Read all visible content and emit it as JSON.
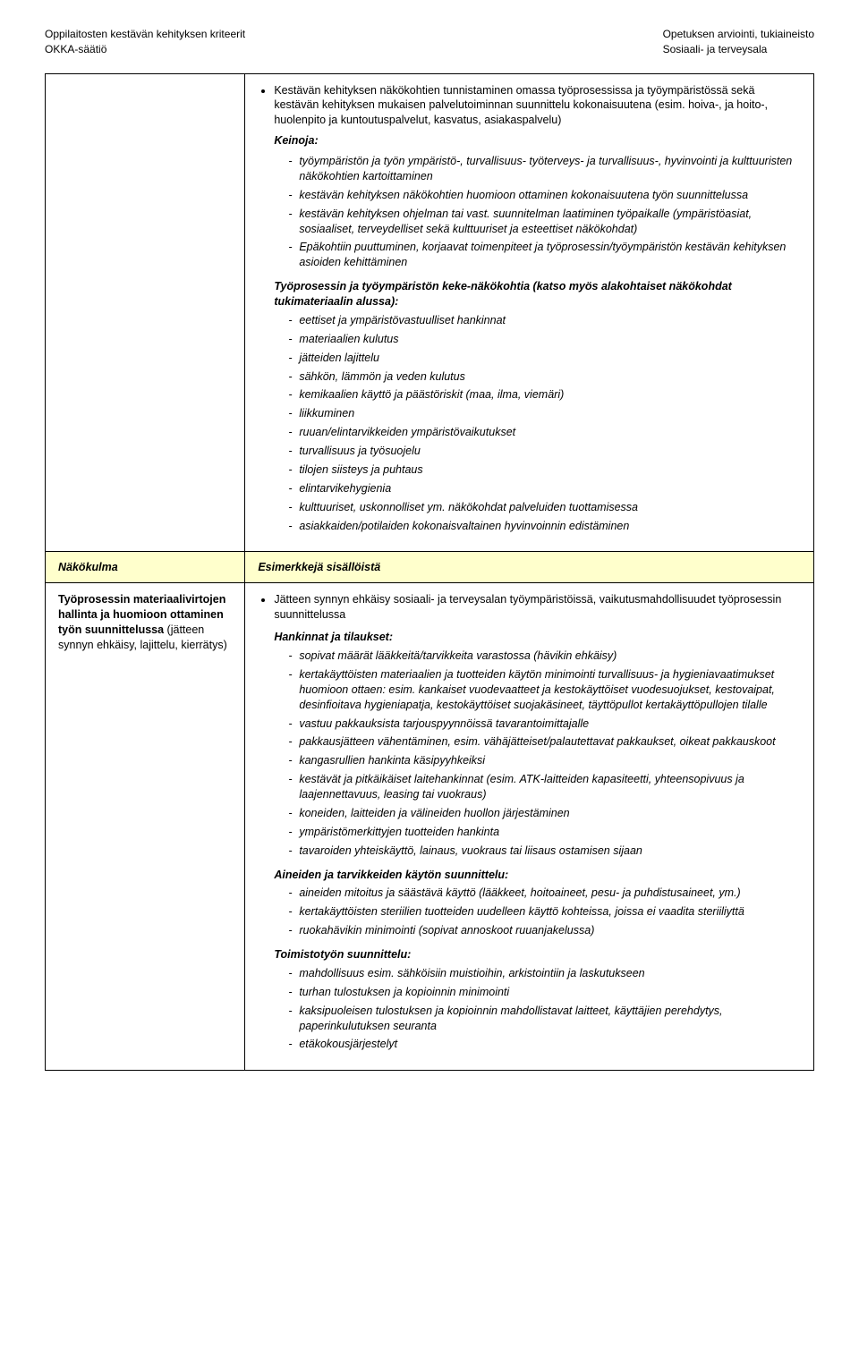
{
  "header": {
    "left_line1": "Oppilaitosten kestävän kehityksen kriteerit",
    "left_line2": "OKKA-säätiö",
    "right_line1": "Opetuksen arviointi, tukiaineisto",
    "right_line2": "Sosiaali- ja terveysala"
  },
  "top": {
    "bullet_intro": "Kestävän kehityksen näkökohtien tunnistaminen omassa työprosessissa ja työympäristössä sekä kestävän kehityksen mukaisen palvelutoiminnan suunnittelu kokonaisuutena (esim. hoiva-, ja hoito-, huolenpito ja kuntoutuspalvelut, kasvatus, asiakaspalvelu)",
    "keinoja_label": "Keinoja:",
    "keinoja_items": [
      "työympäristön ja työn ympäristö-, turvallisuus- työterveys- ja turvallisuus-, hyvinvointi ja kulttuuristen näkökohtien kartoittaminen",
      "kestävän kehityksen näkökohtien huomioon ottaminen kokonaisuutena työn suunnittelussa",
      "kestävän kehityksen ohjelman tai vast. suunnitelman laatiminen työpaikalle (ympäristöasiat, sosiaaliset, terveydelliset sekä kulttuuriset ja esteettiset näkökohdat)",
      "Epäkohtiin puuttuminen, korjaavat toimenpiteet ja työprosessin/työympäristön kestävän kehityksen asioiden kehittäminen"
    ],
    "keke_heading": "Työprosessin ja työympäristön keke-näkökohtia (katso myös alakohtaiset näkökohdat tukimateriaalin alussa):",
    "keke_items": [
      "eettiset ja ympäristövastuulliset hankinnat",
      "materiaalien kulutus",
      "jätteiden lajittelu",
      "sähkön, lämmön ja veden kulutus",
      "kemikaalien käyttö ja päästöriskit (maa, ilma, viemäri)",
      "liikkuminen",
      "ruuan/elintarvikkeiden ympäristövaikutukset",
      "turvallisuus ja työsuojelu",
      "tilojen siisteys ja puhtaus",
      "elintarvikehygienia",
      "kulttuuriset, uskonnolliset ym. näkökohdat palveluiden tuottamisessa",
      "asiakkaiden/potilaiden kokonaisvaltainen hyvinvoinnin edistäminen"
    ]
  },
  "perspective_row": {
    "left": "Näkökulma",
    "right": "Esimerkkejä sisällöistä"
  },
  "bottom": {
    "left_text": "Työprosessin materiaalivirtojen hallinta ja huomioon ottaminen työn suunnittelussa (jätteen synnyn ehkäisy, lajittelu, kierrätys)",
    "left_bold_part": "Työprosessin materiaalivirtojen hallinta ja huomioon ottaminen työn suunnittelussa",
    "left_rest": " (jätteen synnyn ehkäisy, lajittelu, kierrätys)",
    "bullet_intro": "Jätteen synnyn ehkäisy sosiaali- ja terveysalan työympäristöissä, vaikutusmahdollisuudet työprosessin suunnittelussa",
    "hankinnat_label": "Hankinnat ja tilaukset:",
    "hankinnat_items": [
      "sopivat määrät lääkkeitä/tarvikkeita varastossa (hävikin ehkäisy)",
      "kertakäyttöisten materiaalien ja tuotteiden käytön minimointi turvallisuus- ja hygieniavaatimukset huomioon ottaen: esim. kankaiset vuodevaatteet ja kestokäyttöiset vuodesuojukset, kestovaipat, desinfioitava hygieniapatja, kestokäyttöiset suojakäsineet, täyttöpullot kertakäyttöpullojen tilalle",
      "vastuu pakkauksista tarjouspyynnöissä tavarantoimittajalle",
      "pakkausjätteen vähentäminen, esim. vähäjätteiset/palautettavat pakkaukset, oikeat pakkauskoot",
      "kangasrullien hankinta käsipyyhkeiksi",
      "kestävät ja pitkäikäiset laitehankinnat (esim. ATK-laitteiden kapasiteetti, yhteensopivuus ja laajennettavuus, leasing tai vuokraus)",
      "koneiden, laitteiden ja välineiden huollon järjestäminen",
      "ympäristömerkittyjen tuotteiden hankinta",
      "tavaroiden yhteiskäyttö, lainaus, vuokraus tai liisaus ostamisen sijaan"
    ],
    "aineiden_label": "Aineiden ja tarvikkeiden käytön suunnittelu:",
    "aineiden_items": [
      "aineiden mitoitus ja säästävä käyttö (lääkkeet, hoitoaineet, pesu- ja puhdistusaineet, ym.)",
      "kertakäyttöisten steriilien tuotteiden uudelleen käyttö kohteissa, joissa ei vaadita steriiliyttä",
      "ruokahävikin minimointi (sopivat annoskoot ruuanjakelussa)"
    ],
    "toimisto_label": "Toimistotyön suunnittelu:",
    "toimisto_items": [
      "mahdollisuus esim. sähköisiin muistioihin, arkistointiin ja laskutukseen",
      "turhan tulostuksen ja kopioinnin minimointi",
      "kaksipuoleisen tulostuksen ja kopioinnin mahdollistavat laitteet, käyttäjien perehdytys, paperinkulutuksen seuranta",
      "etäkokousjärjestelyt"
    ]
  }
}
